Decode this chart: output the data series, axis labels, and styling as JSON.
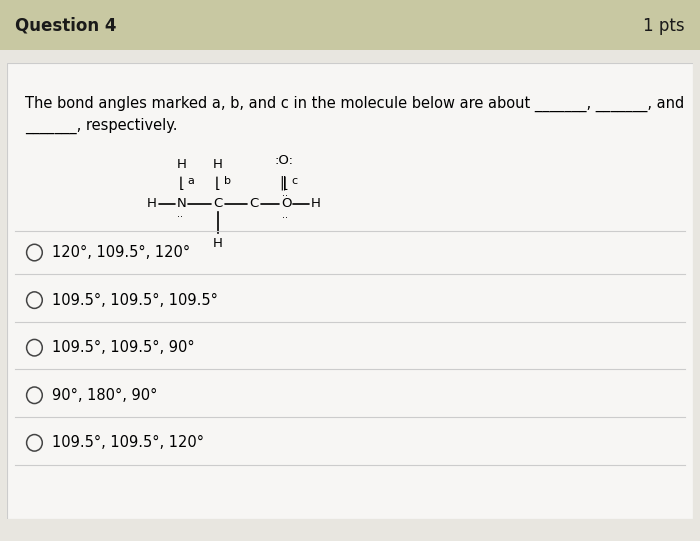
{
  "title": "Question 4",
  "pts": "1 pts",
  "question_text": "The bond angles marked a, b, and c in the molecule below are about _______, _______, and",
  "question_text2": "_______, respectively.",
  "header_bg": "#c8c8a2",
  "body_bg": "#e8e6e0",
  "white_bg": "#f7f6f4",
  "options": [
    "120°, 109.5°, 120°",
    "109.5°, 109.5°, 109.5°",
    "109.5°, 109.5°, 90°",
    "90°, 180°, 90°",
    "109.5°, 109.5°, 120°"
  ],
  "title_fontsize": 12,
  "option_fontsize": 10.5,
  "question_fontsize": 10.5,
  "mol_fontsize": 9.5
}
